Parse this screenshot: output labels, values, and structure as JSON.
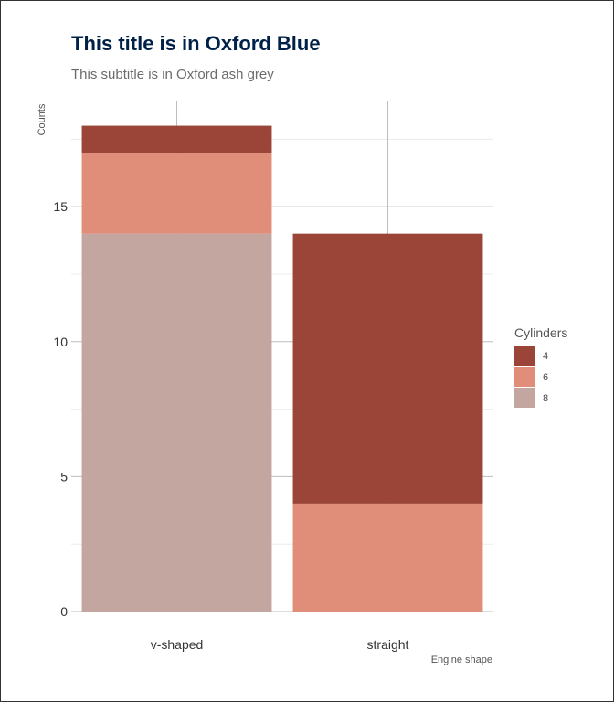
{
  "colors": {
    "title": "#002147",
    "subtitle": "#6b6b6b",
    "grid_major": "#bdbdbd",
    "grid_minor": "#ececec",
    "cyl4": "#9a4537",
    "cyl6": "#e08e79",
    "cyl8": "#c4a6a1"
  },
  "chart_data": {
    "type": "bar",
    "stacked": true,
    "title": "This title is in Oxford Blue",
    "subtitle": "This subtitle is in Oxford ash grey",
    "xlabel": "Engine shape",
    "ylabel": "Counts",
    "categories": [
      "v-shaped",
      "straight"
    ],
    "series": [
      {
        "name": "4",
        "values": [
          1,
          10
        ],
        "color": "#9a4537"
      },
      {
        "name": "6",
        "values": [
          3,
          4
        ],
        "color": "#e08e79"
      },
      {
        "name": "8",
        "values": [
          14,
          0
        ],
        "color": "#c4a6a1"
      }
    ],
    "stack_order_bottom_to_top": [
      "8",
      "6",
      "4"
    ],
    "ylim": [
      0,
      18.9
    ],
    "y_ticks": [
      0,
      5,
      10,
      15
    ],
    "y_tick_labels": [
      "0",
      "5",
      "10",
      "15"
    ],
    "grid": true,
    "legend": {
      "title": "Cylinders",
      "entries": [
        "4",
        "6",
        "8"
      ],
      "placement": "right"
    }
  }
}
